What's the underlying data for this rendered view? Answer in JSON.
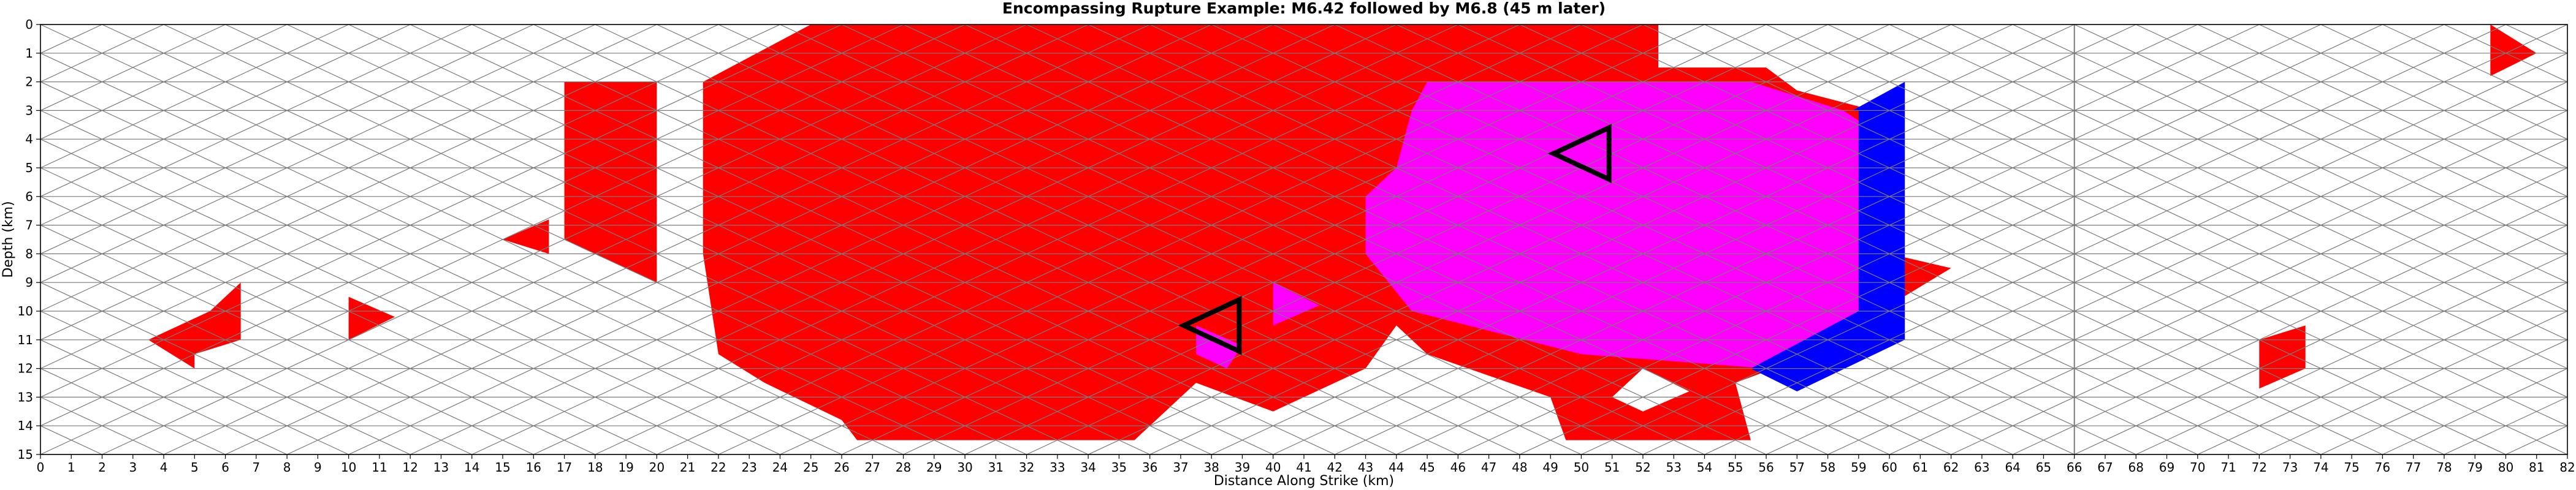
{
  "chart_data": {
    "type": "heatmap",
    "title": "Encompassing Rupture Example: M6.42 followed by M6.8 (45 m later)",
    "xlabel": "Distance Along Strike (km)",
    "ylabel": "Depth (km)",
    "xlim": [
      0,
      82
    ],
    "ylim": [
      15,
      0
    ],
    "xticks": [
      0,
      1,
      2,
      3,
      4,
      5,
      6,
      7,
      8,
      9,
      10,
      11,
      12,
      13,
      14,
      15,
      16,
      17,
      18,
      19,
      20,
      21,
      22,
      23,
      24,
      25,
      26,
      27,
      28,
      29,
      30,
      31,
      32,
      33,
      34,
      35,
      36,
      37,
      38,
      39,
      40,
      41,
      42,
      43,
      44,
      45,
      46,
      47,
      48,
      49,
      50,
      51,
      52,
      53,
      54,
      55,
      56,
      57,
      58,
      59,
      60,
      61,
      62,
      63,
      64,
      65,
      66,
      67,
      68,
      69,
      70,
      71,
      72,
      73,
      74,
      75,
      76,
      77,
      78,
      79,
      80,
      81,
      82
    ],
    "yticks": [
      0,
      1,
      2,
      3,
      4,
      5,
      6,
      7,
      8,
      9,
      10,
      11,
      12,
      13,
      14,
      15
    ],
    "grid": true,
    "colors": {
      "M6.42 rupture": "#ff0000",
      "Overlap": "#ff00ff",
      "M6.8 rupture": "#0000ff",
      "Unruptured": "#ffffff",
      "Hypocenter marker": "#000000"
    },
    "mesh": {
      "element": "triangle",
      "fault_segments_km": [
        [
          0,
          66
        ],
        [
          66,
          82
        ]
      ]
    },
    "regions_km": [
      {
        "state": "M6.42 rupture",
        "polygon": [
          [
            25,
            0
          ],
          [
            52.5,
            0
          ],
          [
            52.5,
            1.5
          ],
          [
            56,
            1.5
          ],
          [
            57,
            2.3
          ],
          [
            59.5,
            3
          ],
          [
            60,
            10.5
          ],
          [
            55,
            12.5
          ],
          [
            55.5,
            14.5
          ],
          [
            49.5,
            14.5
          ],
          [
            49,
            13
          ],
          [
            45,
            11.5
          ],
          [
            44,
            10.5
          ],
          [
            43,
            12
          ],
          [
            40,
            13.5
          ],
          [
            37.5,
            12.5
          ],
          [
            35.5,
            14.5
          ],
          [
            26.5,
            14.5
          ],
          [
            26,
            13.8
          ],
          [
            23.5,
            12.5
          ],
          [
            22,
            11.5
          ],
          [
            21.5,
            8
          ],
          [
            21.5,
            2
          ]
        ]
      },
      {
        "state": "M6.42 rupture",
        "polygon": [
          [
            17,
            2
          ],
          [
            20,
            2
          ],
          [
            20,
            9
          ],
          [
            17,
            7.5
          ]
        ]
      },
      {
        "state": "M6.42 rupture",
        "polygon": [
          [
            3.5,
            11
          ],
          [
            5.5,
            10
          ],
          [
            6.5,
            9
          ],
          [
            6.5,
            11
          ],
          [
            5,
            11.5
          ],
          [
            5,
            12
          ]
        ]
      },
      {
        "state": "M6.42 rupture",
        "polygon": [
          [
            10,
            9.5
          ],
          [
            11.5,
            10.2
          ],
          [
            10,
            11
          ]
        ]
      },
      {
        "state": "M6.42 rupture",
        "polygon": [
          [
            15,
            7.5
          ],
          [
            16.5,
            6.8
          ],
          [
            16.5,
            8
          ]
        ]
      },
      {
        "state": "M6.42 rupture",
        "polygon": [
          [
            60,
            8
          ],
          [
            62,
            8.5
          ],
          [
            60,
            9.8
          ]
        ]
      },
      {
        "state": "M6.42 rupture",
        "polygon": [
          [
            72,
            11
          ],
          [
            73.5,
            10.5
          ],
          [
            73.5,
            12
          ],
          [
            72,
            12.7
          ]
        ]
      },
      {
        "state": "M6.42 rupture",
        "polygon": [
          [
            79.5,
            0
          ],
          [
            81,
            1
          ],
          [
            79.5,
            1.8
          ]
        ]
      },
      {
        "state": "Overlap",
        "polygon": [
          [
            45,
            2
          ],
          [
            51,
            2
          ],
          [
            55.5,
            2
          ],
          [
            58.5,
            3
          ],
          [
            59.2,
            3.5
          ],
          [
            59.2,
            10.2
          ],
          [
            56,
            12
          ],
          [
            50,
            11.5
          ],
          [
            44.5,
            10
          ],
          [
            43,
            8
          ],
          [
            43,
            6
          ],
          [
            44,
            5
          ],
          [
            44.5,
            3
          ]
        ]
      },
      {
        "state": "Overlap",
        "polygon": [
          [
            40,
            9
          ],
          [
            41.5,
            9.8
          ],
          [
            40,
            10.5
          ]
        ]
      },
      {
        "state": "Overlap",
        "polygon": [
          [
            37.5,
            10.5
          ],
          [
            39,
            11.2
          ],
          [
            38.5,
            12
          ],
          [
            37.5,
            11.5
          ]
        ]
      },
      {
        "state": "M6.8 rupture",
        "polygon": [
          [
            58.8,
            3
          ],
          [
            60.5,
            2
          ],
          [
            60.5,
            11
          ],
          [
            57,
            12.8
          ],
          [
            55.5,
            12
          ],
          [
            59,
            10
          ],
          [
            59,
            3
          ]
        ]
      },
      {
        "state": "Unruptured",
        "polygon": [
          [
            52,
            12
          ],
          [
            53.5,
            12.8
          ],
          [
            52,
            13.5
          ],
          [
            51,
            13
          ]
        ]
      },
      {
        "state": "Unruptured",
        "polygon": [
          [
            38,
            14
          ],
          [
            39.2,
            14.8
          ],
          [
            37.5,
            14.8
          ]
        ]
      }
    ],
    "hypocenters": [
      {
        "event": "M6.42",
        "x": 38,
        "y": 10.5
      },
      {
        "event": "M6.8",
        "x": 50,
        "y": 4.5
      }
    ]
  }
}
